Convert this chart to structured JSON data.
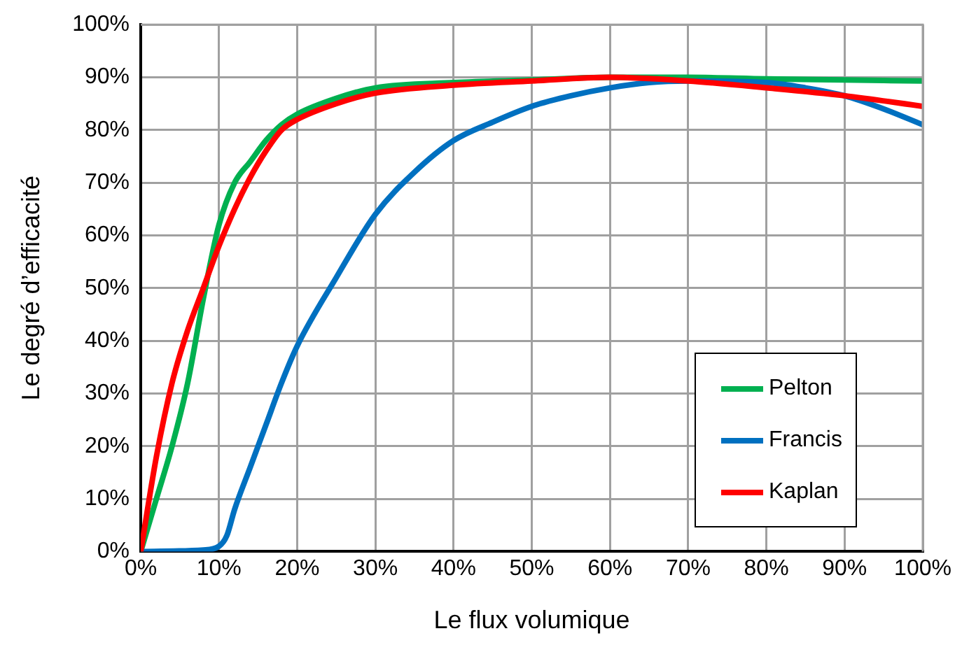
{
  "chart_data": {
    "type": "line",
    "xlabel": "Le flux volumique",
    "ylabel": "Le degré d’efficacité",
    "xlim": [
      0,
      100
    ],
    "ylim": [
      0,
      100
    ],
    "xticks": [
      {
        "value": 0,
        "label": "0%"
      },
      {
        "value": 10,
        "label": "10%"
      },
      {
        "value": 20,
        "label": "20%"
      },
      {
        "value": 30,
        "label": "30%"
      },
      {
        "value": 40,
        "label": "40%"
      },
      {
        "value": 50,
        "label": "50%"
      },
      {
        "value": 60,
        "label": "60%"
      },
      {
        "value": 70,
        "label": "70%"
      },
      {
        "value": 80,
        "label": "80%"
      },
      {
        "value": 90,
        "label": "90%"
      },
      {
        "value": 100,
        "label": "100%"
      }
    ],
    "yticks": [
      {
        "value": 0,
        "label": "0%"
      },
      {
        "value": 10,
        "label": "10%"
      },
      {
        "value": 20,
        "label": "20%"
      },
      {
        "value": 30,
        "label": "30%"
      },
      {
        "value": 40,
        "label": "40%"
      },
      {
        "value": 50,
        "label": "50%"
      },
      {
        "value": 60,
        "label": "60%"
      },
      {
        "value": 70,
        "label": "70%"
      },
      {
        "value": 80,
        "label": "80%"
      },
      {
        "value": 90,
        "label": "90%"
      },
      {
        "value": 100,
        "label": "100%"
      }
    ],
    "grid": true,
    "legend": "bottom right",
    "marker": "none",
    "line_style": "solid",
    "series": [
      {
        "name": "Pelton",
        "color": "#00b050",
        "x": [
          0,
          2,
          4,
          6,
          8,
          10,
          12,
          14,
          16,
          18,
          20,
          25,
          30,
          40,
          50,
          60,
          70,
          80,
          90,
          100
        ],
        "values": [
          0,
          10,
          20,
          32,
          48,
          62,
          70,
          74,
          78,
          81,
          83,
          86,
          88,
          89,
          89.5,
          90,
          90,
          89.7,
          89.5,
          89.3
        ]
      },
      {
        "name": "Francis",
        "color": "#0070c0",
        "x": [
          0,
          8,
          10,
          11,
          12,
          14,
          16,
          18,
          20,
          25,
          30,
          35,
          40,
          45,
          50,
          55,
          60,
          65,
          70,
          80,
          85,
          90,
          95,
          100
        ],
        "values": [
          0,
          0.3,
          1,
          3,
          8,
          16,
          24,
          32,
          39,
          52,
          64,
          72,
          78,
          81.5,
          84.5,
          86.5,
          88,
          89,
          89.3,
          89,
          88,
          86.5,
          84,
          81
        ]
      },
      {
        "name": "Kaplan",
        "color": "#ff0000",
        "x": [
          0,
          2,
          4,
          6,
          8,
          10,
          12,
          14,
          16,
          18,
          20,
          25,
          30,
          40,
          50,
          60,
          70,
          80,
          90,
          100
        ],
        "values": [
          0,
          18,
          32,
          42,
          50,
          58,
          65,
          71,
          76,
          80,
          82,
          85,
          87,
          88.5,
          89.3,
          90,
          89.3,
          88,
          86.5,
          84.5
        ]
      }
    ]
  }
}
